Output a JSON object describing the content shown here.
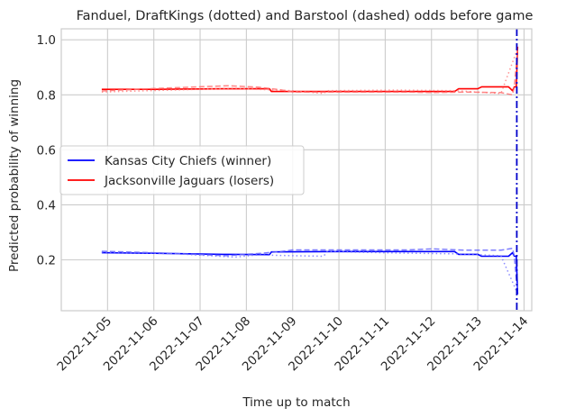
{
  "chart_data": {
    "type": "line",
    "title": "Fanduel, DraftKings (dotted) and Barstool (dashed) odds before game",
    "xlabel": "Time up to match",
    "ylabel": "Predicted probability of winning",
    "x_ticks": [
      "2022-11-05",
      "2022-11-06",
      "2022-11-07",
      "2022-11-08",
      "2022-11-09",
      "2022-11-10",
      "2022-11-11",
      "2022-11-12",
      "2022-11-13",
      "2022-11-14"
    ],
    "y_ticks": [
      "0.2",
      "0.4",
      "0.6",
      "0.8",
      "1.0"
    ],
    "xlim": [
      "2022-11-04T00:00",
      "2022-11-14T04:00"
    ],
    "ylim": [
      0.015,
      1.04
    ],
    "grid": true,
    "legend": {
      "placement": "center-left",
      "entries": [
        {
          "label": "Kansas City Chiefs (winner)",
          "color": "#0000ff"
        },
        {
          "label": "Jacksonville Jaguars (losers)",
          "color": "#ff0000"
        }
      ]
    },
    "vline": {
      "x": "2022-11-13T20:15",
      "color": "#0000cc",
      "style": "dashdot"
    },
    "series": [
      {
        "team": "chiefs",
        "bookmaker": "Fanduel",
        "style": "solid",
        "color": "#0000ff",
        "points": [
          [
            "2022-11-04T21:00",
            0.226
          ],
          [
            "2022-11-06T00:00",
            0.224
          ],
          [
            "2022-11-07T12:00",
            0.22
          ],
          [
            "2022-11-08T12:00",
            0.219
          ],
          [
            "2022-11-08T13:00",
            0.229
          ],
          [
            "2022-11-10T00:00",
            0.23
          ],
          [
            "2022-11-12T12:00",
            0.23
          ],
          [
            "2022-11-12T14:00",
            0.22
          ],
          [
            "2022-11-13T00:00",
            0.22
          ],
          [
            "2022-11-13T02:00",
            0.213
          ],
          [
            "2022-11-13T16:00",
            0.213
          ],
          [
            "2022-11-13T18:00",
            0.226
          ],
          [
            "2022-11-13T19:00",
            0.213
          ],
          [
            "2022-11-13T20:00",
            0.213
          ],
          [
            "2022-11-13T20:40",
            0.075
          ]
        ]
      },
      {
        "team": "chiefs",
        "bookmaker": "DraftKings",
        "style": "dotted",
        "color": "#7777ff",
        "points": [
          [
            "2022-11-04T21:00",
            0.228
          ],
          [
            "2022-11-06T12:00",
            0.222
          ],
          [
            "2022-11-07T18:00",
            0.21
          ],
          [
            "2022-11-08T06:00",
            0.218
          ],
          [
            "2022-11-09T00:00",
            0.215
          ],
          [
            "2022-11-09T16:00",
            0.213
          ],
          [
            "2022-11-09T18:00",
            0.23
          ],
          [
            "2022-11-11T06:00",
            0.225
          ],
          [
            "2022-11-12T12:00",
            0.222
          ],
          [
            "2022-11-13T12:00",
            0.215
          ],
          [
            "2022-11-13T20:30",
            0.08
          ]
        ]
      },
      {
        "team": "chiefs",
        "bookmaker": "Barstool",
        "style": "dashed",
        "color": "#6666ff",
        "points": [
          [
            "2022-11-04T21:00",
            0.231
          ],
          [
            "2022-11-06T00:00",
            0.226
          ],
          [
            "2022-11-07T14:00",
            0.215
          ],
          [
            "2022-11-08T06:00",
            0.223
          ],
          [
            "2022-11-08T18:00",
            0.23
          ],
          [
            "2022-11-09T00:00",
            0.236
          ],
          [
            "2022-11-11T12:00",
            0.236
          ],
          [
            "2022-11-12T00:00",
            0.24
          ],
          [
            "2022-11-12T18:00",
            0.235
          ],
          [
            "2022-11-13T12:00",
            0.235
          ],
          [
            "2022-11-13T18:00",
            0.242
          ],
          [
            "2022-11-13T19:00",
            0.213
          ],
          [
            "2022-11-13T20:35",
            0.085
          ]
        ]
      },
      {
        "team": "jaguars",
        "bookmaker": "Fanduel",
        "style": "solid",
        "color": "#ff0000",
        "points": [
          [
            "2022-11-04T21:00",
            0.82
          ],
          [
            "2022-11-06T00:00",
            0.82
          ],
          [
            "2022-11-07T12:00",
            0.822
          ],
          [
            "2022-11-08T12:00",
            0.822
          ],
          [
            "2022-11-08T13:00",
            0.812
          ],
          [
            "2022-11-10T00:00",
            0.812
          ],
          [
            "2022-11-12T12:00",
            0.812
          ],
          [
            "2022-11-12T14:00",
            0.822
          ],
          [
            "2022-11-13T00:00",
            0.822
          ],
          [
            "2022-11-13T02:00",
            0.829
          ],
          [
            "2022-11-13T16:00",
            0.829
          ],
          [
            "2022-11-13T18:00",
            0.815
          ],
          [
            "2022-11-13T19:00",
            0.829
          ],
          [
            "2022-11-13T20:00",
            0.829
          ],
          [
            "2022-11-13T20:40",
            0.975
          ]
        ]
      },
      {
        "team": "jaguars",
        "bookmaker": "DraftKings",
        "style": "dotted",
        "color": "#ff8080",
        "points": [
          [
            "2022-11-04T21:00",
            0.81
          ],
          [
            "2022-11-06T12:00",
            0.818
          ],
          [
            "2022-11-07T18:00",
            0.824
          ],
          [
            "2022-11-08T06:00",
            0.82
          ],
          [
            "2022-11-09T00:00",
            0.815
          ],
          [
            "2022-11-09T16:00",
            0.805
          ],
          [
            "2022-11-09T18:00",
            0.815
          ],
          [
            "2022-11-11T06:00",
            0.817
          ],
          [
            "2022-11-12T12:00",
            0.815
          ],
          [
            "2022-11-13T12:00",
            0.805
          ],
          [
            "2022-11-13T20:30",
            0.965
          ]
        ]
      },
      {
        "team": "jaguars",
        "bookmaker": "Barstool",
        "style": "dashed",
        "color": "#ff7070",
        "points": [
          [
            "2022-11-04T21:00",
            0.814
          ],
          [
            "2022-11-06T00:00",
            0.823
          ],
          [
            "2022-11-07T14:00",
            0.833
          ],
          [
            "2022-11-08T06:00",
            0.828
          ],
          [
            "2022-11-08T18:00",
            0.818
          ],
          [
            "2022-11-09T00:00",
            0.81
          ],
          [
            "2022-11-11T12:00",
            0.81
          ],
          [
            "2022-11-12T00:00",
            0.808
          ],
          [
            "2022-11-12T18:00",
            0.81
          ],
          [
            "2022-11-13T12:00",
            0.808
          ],
          [
            "2022-11-13T18:00",
            0.8
          ],
          [
            "2022-11-13T19:00",
            0.829
          ],
          [
            "2022-11-13T20:35",
            0.96
          ]
        ]
      }
    ]
  }
}
